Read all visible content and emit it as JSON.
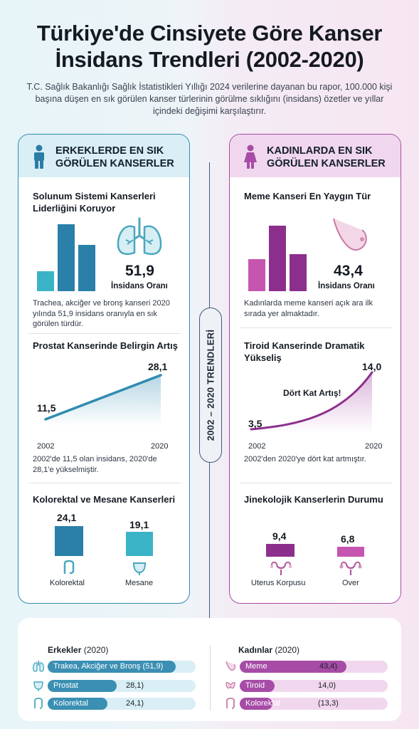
{
  "title_line1": "Türkiye'de Cinsiyete Göre Kanser",
  "title_line2": "İnsidans Trendleri (2002-2020)",
  "subtitle": "T.C. Sağlık Bakanlığı Sağlık İstatistikleri Yıllığı 2024 verilerine dayanan bu rapor, 100.000 kişi başına düşen en sık görülen kanser türlerinin görülme sıklığını (insidans) özetler ve yıllar içindeki değişimi karşılaştırır.",
  "divider_label": "2002 – 2020 TRENDLERİ",
  "colors": {
    "men": "#2f8bb0",
    "men_light": "#d9eef5",
    "women": "#a64ca6",
    "women_light": "#f1d7ee"
  },
  "men": {
    "header": "ERKEKLERDE EN SIK GÖRÜLEN KANSERLER",
    "header_icon": "male-person-icon",
    "s1": {
      "title": "Solunum Sistemi Kanserleri Liderliğini Koruyor",
      "value": "51,9",
      "label": "İnsidans Oranı",
      "icon": "lungs-icon",
      "text": "Trachea, akciğer ve bronş kanseri 2020 yılında 51,9 insidans oranıyla en sık görülen türdür."
    },
    "s2": {
      "title": "Prostat Kanserinde Belirgin Artış",
      "start_value": "11,5",
      "end_value": "28,1",
      "start_year": "2002",
      "end_year": "2020",
      "text": "2002'de 11,5 olan insidans, 2020'de 28,1'e yükselmiştir."
    },
    "s3": {
      "title": "Kolorektal ve Mesane Kanserleri",
      "a_value": "24,1",
      "a_label": "Kolorektal",
      "a_icon": "colon-icon",
      "b_value": "19,1",
      "b_label": "Mesane",
      "b_icon": "bladder-icon"
    }
  },
  "women": {
    "header": "KADINLARDA EN SIK GÖRÜLEN KANSERLER",
    "header_icon": "female-person-icon",
    "s1": {
      "title": "Meme Kanseri En Yaygın Tür",
      "value": "43,4",
      "label": "İnsidans Oranı",
      "icon": "breast-icon",
      "text": "Kadınlarda meme kanseri açık ara ilk sırada yer almaktadır."
    },
    "s2": {
      "title": "Tiroid Kanserinde Dramatik Yükseliş",
      "annotation": "Dört Kat Artış!",
      "start_value": "3,5",
      "end_value": "14,0",
      "start_year": "2002",
      "end_year": "2020",
      "text": "2002'den 2020'ye dört kat artmıştır."
    },
    "s3": {
      "title": "Jinekolojik Kanserlerin Durumu",
      "a_value": "9,4",
      "a_label": "Uterus Korpusu",
      "a_icon": "uterus-icon",
      "b_value": "6,8",
      "b_label": "Over",
      "b_icon": "ovary-icon"
    }
  },
  "summary": {
    "men_title": "Erkekler",
    "men_year": "(2020)",
    "women_title": "Kadınlar",
    "women_year": "(2020)",
    "men_rows": [
      {
        "label": "Trakea, Akciğer ve Bronş (51,9)",
        "value_text": "",
        "value": 51.9,
        "icon": "lungs-icon"
      },
      {
        "label": "Prostat",
        "value_text": "28,1)",
        "value": 28.1,
        "icon": "bladder-icon"
      },
      {
        "label": "Kolorektal",
        "value_text": "24,1)",
        "value": 24.1,
        "icon": "colon-icon"
      }
    ],
    "women_rows": [
      {
        "label": "Meme",
        "value_text": "43,4)",
        "value": 43.4,
        "icon": "breast-icon"
      },
      {
        "label": "Tiroid",
        "value_text": "14,0)",
        "value": 14.0,
        "icon": "thyroid-icon"
      },
      {
        "label": "Kolorektal",
        "value_text": "(13,3)",
        "value": 13.3,
        "icon": "colon-icon"
      }
    ]
  }
}
